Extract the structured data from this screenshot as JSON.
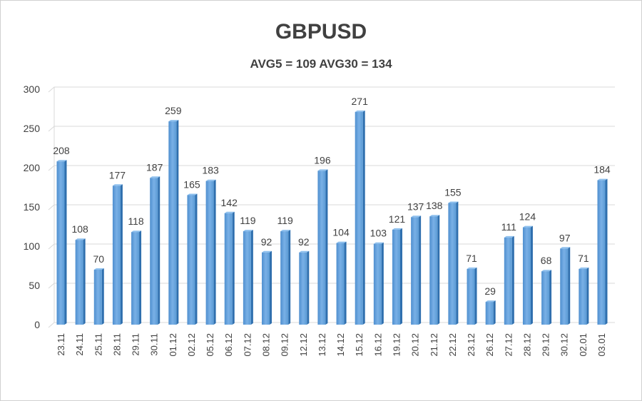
{
  "chart_data": {
    "type": "bar",
    "title": "GBPUSD",
    "subtitle": "AVG5 = 109 AVG30 = 134",
    "xlabel": "",
    "ylabel": "",
    "ylim": [
      0,
      300
    ],
    "yticks": [
      0,
      50,
      100,
      150,
      200,
      250,
      300
    ],
    "grid": true,
    "categories": [
      "23.11",
      "24.11",
      "25.11",
      "28.11",
      "29.11",
      "30.11",
      "01.12",
      "02.12",
      "05.12",
      "06.12",
      "07.12",
      "08.12",
      "09.12",
      "12.12",
      "13.12",
      "14.12",
      "15.12",
      "16.12",
      "19.12",
      "20.12",
      "21.12",
      "22.12",
      "23.12",
      "26.12",
      "27.12",
      "28.12",
      "29.12",
      "30.12",
      "02.01",
      "03.01"
    ],
    "values": [
      208,
      108,
      70,
      177,
      118,
      187,
      259,
      165,
      183,
      142,
      119,
      92,
      119,
      92,
      196,
      104,
      271,
      103,
      121,
      137,
      138,
      155,
      71,
      29,
      111,
      124,
      68,
      97,
      71,
      184
    ],
    "bar_color": "#5b9bd5"
  }
}
